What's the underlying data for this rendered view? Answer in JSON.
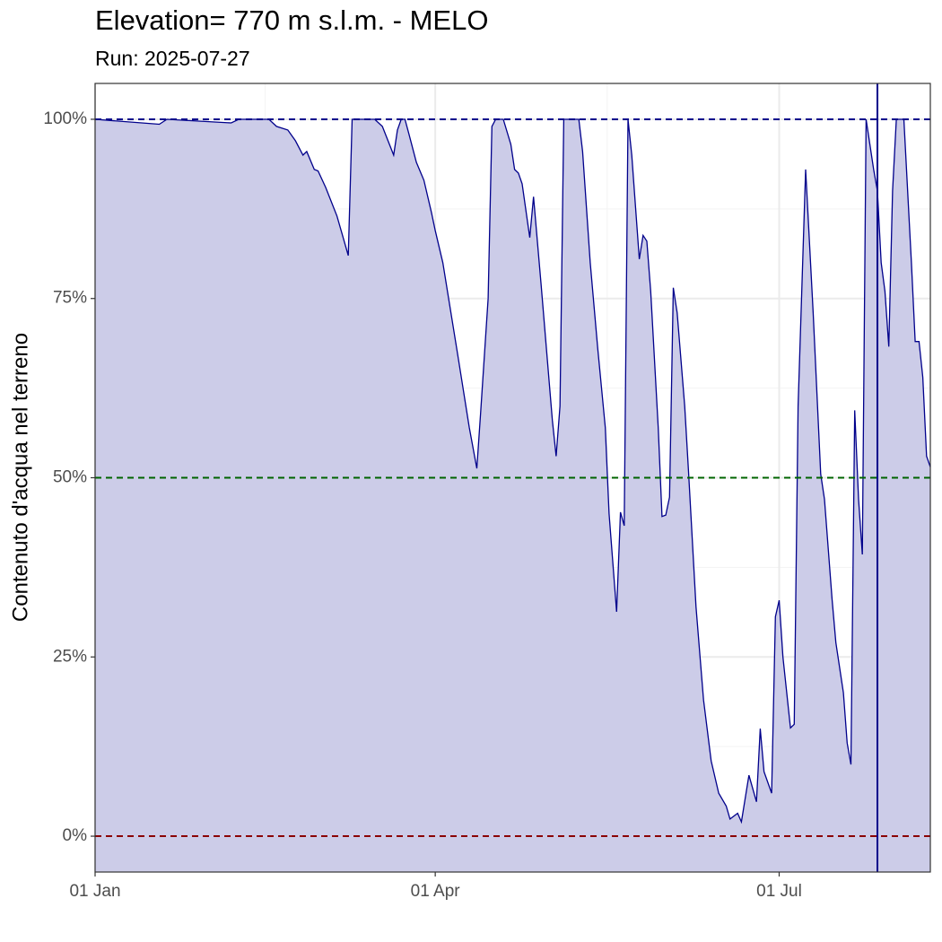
{
  "chart_data": {
    "type": "area",
    "title": "Elevation= 770 m s.l.m. - MELO",
    "subtitle": "Run: 2025-07-27",
    "y_label": "Contenuto d'acqua nel terreno",
    "x": [
      "01-01",
      "01-18",
      "01-20",
      "02-06",
      "02-08",
      "02-16",
      "02-18",
      "02-21",
      "02-23",
      "02-25",
      "02-26",
      "02-28",
      "03-01",
      "03-03",
      "03-06",
      "03-09",
      "03-10",
      "03-16",
      "03-18",
      "03-21",
      "03-22",
      "03-23",
      "03-24",
      "03-25",
      "03-27",
      "03-29",
      "03-31",
      "04-01",
      "04-03",
      "04-07",
      "04-10",
      "04-12",
      "04-13",
      "04-15",
      "04-16",
      "04-17",
      "04-19",
      "04-21",
      "04-22",
      "04-23",
      "04-24",
      "04-26",
      "04-27",
      "04-29",
      "05-02",
      "05-03",
      "05-04",
      "05-05",
      "05-09",
      "05-10",
      "05-12",
      "05-14",
      "05-16",
      "05-17",
      "05-19",
      "05-20",
      "05-21",
      "05-22",
      "05-23",
      "05-25",
      "05-26",
      "05-27",
      "05-28",
      "05-30",
      "05-31",
      "06-01",
      "06-02",
      "06-03",
      "06-04",
      "06-06",
      "06-07",
      "06-09",
      "06-11",
      "06-13",
      "06-15",
      "06-17",
      "06-18",
      "06-20",
      "06-21",
      "06-23",
      "06-25",
      "06-26",
      "06-27",
      "06-29",
      "06-30",
      "07-01",
      "07-02",
      "07-04",
      "07-05",
      "07-06",
      "07-08",
      "07-10",
      "07-12",
      "07-13",
      "07-15",
      "07-16",
      "07-18",
      "07-19",
      "07-20",
      "07-21",
      "07-22",
      "07-23",
      "07-24",
      "07-26",
      "07-27",
      "07-28",
      "07-29",
      "07-30",
      "07-31",
      "08-01",
      "08-03",
      "08-05",
      "08-06",
      "08-07",
      "08-08",
      "08-09",
      "08-10"
    ],
    "series": [
      {
        "color": "#00008b",
        "fill": "#ccccE8",
        "values": [
          100,
          99.3,
          100,
          99.5,
          100,
          100,
          99,
          98.5,
          97,
          95,
          95.5,
          93,
          92.8,
          90.5,
          86.5,
          81,
          100,
          100,
          99,
          95,
          98.5,
          100,
          100,
          98,
          94,
          91.5,
          87,
          84.5,
          80,
          67,
          57,
          51.3,
          59,
          75,
          99,
          100,
          100,
          96.5,
          93,
          92.5,
          91,
          83.5,
          89.2,
          77,
          58,
          53,
          60,
          100,
          100,
          95.5,
          80,
          68,
          57,
          45,
          31.3,
          45.2,
          43.3,
          100,
          95,
          80.5,
          83.8,
          83,
          76,
          57,
          44.6,
          44.8,
          47.3,
          76.5,
          73,
          60,
          51,
          32,
          19,
          10.5,
          6,
          4.2,
          2.4,
          3.2,
          2,
          8.5,
          4.8,
          15,
          9,
          6,
          30.6,
          32.9,
          25,
          15.1,
          15.6,
          60,
          93,
          73,
          50.5,
          47,
          33,
          27,
          20,
          13,
          10,
          59.4,
          47,
          39.3,
          100,
          93,
          90,
          80,
          76,
          68.3,
          90,
          100,
          100,
          80,
          69,
          69,
          64,
          53,
          51.5
        ]
      }
    ],
    "xlim": [
      "01-01",
      "08-10"
    ],
    "xticks": [
      {
        "value": "01-01",
        "label": "01 Jan"
      },
      {
        "value": "04-01",
        "label": "01 Apr"
      },
      {
        "value": "07-01",
        "label": "01 Jul"
      }
    ],
    "ylim": [
      -5,
      105
    ],
    "yticks": [
      {
        "value": 0,
        "label": "0%"
      },
      {
        "value": 25,
        "label": "25%"
      },
      {
        "value": 50,
        "label": "50%"
      },
      {
        "value": 75,
        "label": "75%"
      },
      {
        "value": 100,
        "label": "100%"
      }
    ],
    "reference_lines": [
      {
        "value": 100,
        "color": "#00008b"
      },
      {
        "value": 50,
        "color": "#006400"
      },
      {
        "value": 0,
        "color": "#8b0000"
      }
    ],
    "vline": {
      "x": "07-27",
      "color": "#00008b"
    },
    "grid": true
  }
}
